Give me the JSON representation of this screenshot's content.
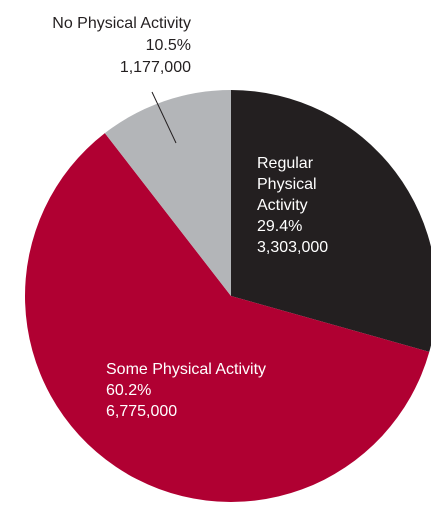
{
  "chart_data": {
    "type": "pie",
    "title": "",
    "slices": [
      {
        "name": "Regular Physical Activity",
        "name_lines": [
          "Regular",
          "Physical",
          "Activity"
        ],
        "percent_label": "29.4%",
        "count_label": "3,303,000",
        "percent": 29.4,
        "value": 3303000,
        "color": "#231f20",
        "label_color": "#ffffff"
      },
      {
        "name": "Some Physical Activity",
        "name_lines": [
          "Some Physical Activity"
        ],
        "percent_label": "60.2%",
        "count_label": "6,775,000",
        "percent": 60.2,
        "value": 6775000,
        "color": "#b00032",
        "label_color": "#ffffff"
      },
      {
        "name": "No Physical Activity",
        "name_lines": [
          "No Physical Activity"
        ],
        "percent_label": "10.5%",
        "count_label": "1,177,000",
        "percent": 10.5,
        "value": 1177000,
        "color": "#b3b5b8",
        "label_color": "#231f20"
      }
    ],
    "start_angle_deg": 0,
    "direction": "clockwise",
    "legend": "none"
  }
}
